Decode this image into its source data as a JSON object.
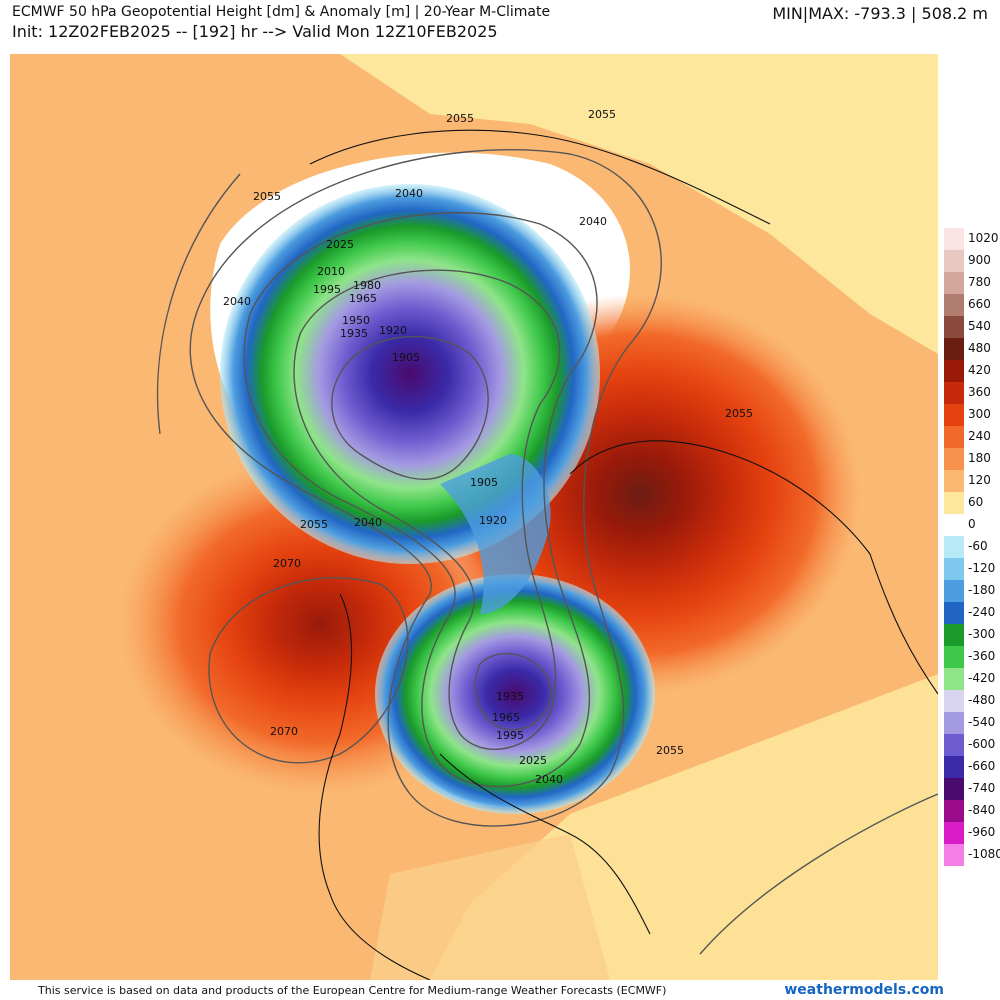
{
  "header": {
    "title_line1": "ECMWF 50 hPa Geopotential Height [dm] & Anomaly [m] | 20-Year M-Climate",
    "title_line2": "Init: 12Z02FEB2025 -- [192] hr --> Valid Mon 12Z10FEB2025",
    "minmax": "MIN|MAX: -793.3 | 508.2 m"
  },
  "colorbar_positive": [
    {
      "label": "1020",
      "color": "#fbe3e3"
    },
    {
      "label": "900",
      "color": "#e9c8c2"
    },
    {
      "label": "780",
      "color": "#d3a79b"
    },
    {
      "label": "660",
      "color": "#b07d70"
    },
    {
      "label": "540",
      "color": "#8a4a3d"
    },
    {
      "label": "480",
      "color": "#6b1d12"
    },
    {
      "label": "420",
      "color": "#9a1a0a"
    },
    {
      "label": "360",
      "color": "#c52a0a"
    },
    {
      "label": "300",
      "color": "#e5420f"
    },
    {
      "label": "240",
      "color": "#f26a2a"
    },
    {
      "label": "180",
      "color": "#f7914e"
    },
    {
      "label": "120",
      "color": "#fab872"
    },
    {
      "label": "60",
      "color": "#fde79c"
    }
  ],
  "colorbar_zero": "0",
  "colorbar_negative": [
    {
      "label": "-60",
      "color": "#b7eaf6"
    },
    {
      "label": "-120",
      "color": "#7fc8ee"
    },
    {
      "label": "-180",
      "color": "#4d9de0"
    },
    {
      "label": "-240",
      "color": "#2166c4"
    },
    {
      "label": "-300",
      "color": "#1a9a2a"
    },
    {
      "label": "-360",
      "color": "#3ec84a"
    },
    {
      "label": "-420",
      "color": "#8fe489"
    },
    {
      "label": "-480",
      "color": "#d8d4f2"
    },
    {
      "label": "-540",
      "color": "#a49ae2"
    },
    {
      "label": "-600",
      "color": "#6f5cd0"
    },
    {
      "label": "-660",
      "color": "#3a2aa8"
    },
    {
      "label": "-740",
      "color": "#4a0a6e"
    },
    {
      "label": "-840",
      "color": "#9a0a8a"
    },
    {
      "label": "-960",
      "color": "#d81cc8"
    },
    {
      "label": "-1080",
      "color": "#f27ee6"
    }
  ],
  "contour_labels": [
    "2055",
    "2055",
    "2055",
    "2040",
    "2040",
    "2040",
    "2025",
    "2010",
    "1995",
    "1980",
    "1965",
    "1950",
    "1935",
    "1920",
    "1905",
    "1905",
    "1920",
    "2055",
    "2040",
    "2070",
    "2070",
    "1935",
    "1965",
    "1995",
    "2025",
    "2040",
    "2055",
    "2055"
  ],
  "footer": {
    "note": "This service is based on data and products of the European Centre for Medium-range Weather Forecasts (ECMWF)",
    "brand": "weathermodels.com"
  }
}
